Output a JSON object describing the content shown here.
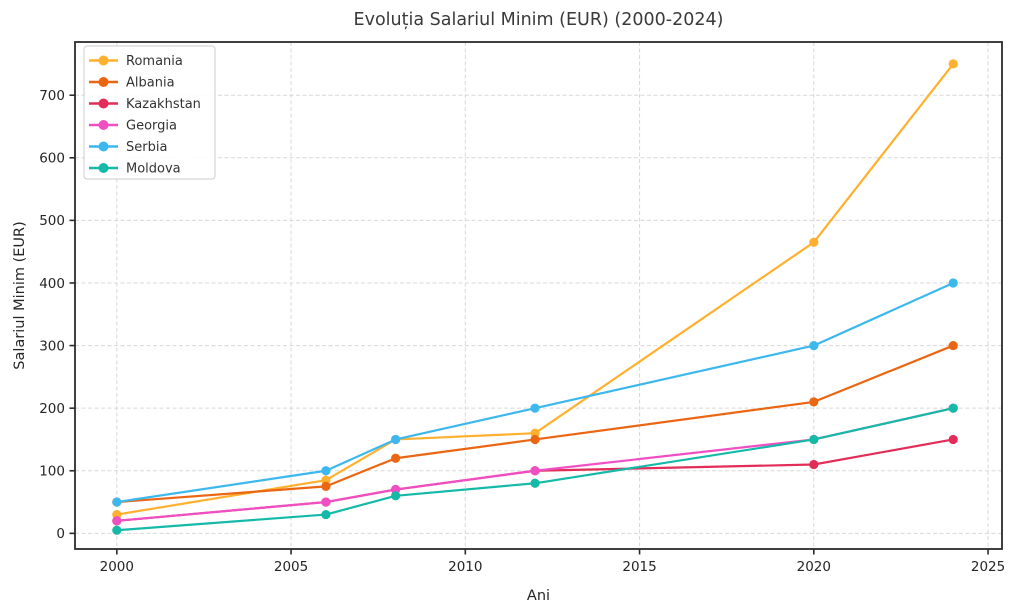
{
  "figure": {
    "title": "Evoluția Salariul Minim (EUR) (2000-2024)"
  },
  "chart_data": {
    "type": "line",
    "title": "Evoluția Salariul Minim (EUR) (2000-2024)",
    "xlabel": "Ani",
    "ylabel": "Salariul Minim (EUR)",
    "x": [
      2000,
      2006,
      2008,
      2012,
      2020,
      2024
    ],
    "series": [
      {
        "name": "Romania",
        "color": "#FFB02E",
        "values": [
          30,
          85,
          150,
          160,
          465,
          750
        ]
      },
      {
        "name": "Albania",
        "color": "#EB6613",
        "values": [
          50,
          75,
          120,
          150,
          210,
          300
        ]
      },
      {
        "name": "Kazakhstan",
        "color": "#E12D57",
        "values": [
          20,
          50,
          70,
          100,
          110,
          150
        ]
      },
      {
        "name": "Georgia",
        "color": "#F04FC4",
        "values": [
          20,
          50,
          70,
          100,
          150,
          200
        ]
      },
      {
        "name": "Serbia",
        "color": "#3CB8EE",
        "values": [
          50,
          100,
          150,
          200,
          300,
          400
        ]
      },
      {
        "name": "Moldova",
        "color": "#14B9A8",
        "values": [
          5,
          30,
          60,
          80,
          150,
          200
        ]
      }
    ],
    "xticks": [
      2000,
      2005,
      2010,
      2015,
      2020,
      2025
    ],
    "yticks": [
      0,
      100,
      200,
      300,
      400,
      500,
      600,
      700
    ],
    "xlim": [
      1998.8,
      2025.4
    ],
    "ylim": [
      -25,
      785
    ],
    "grid": true,
    "grid_style": "dashed",
    "grid_color": "#d8d8d8",
    "spine_color": "#2b2b2b",
    "legend_position": "upper-left"
  }
}
